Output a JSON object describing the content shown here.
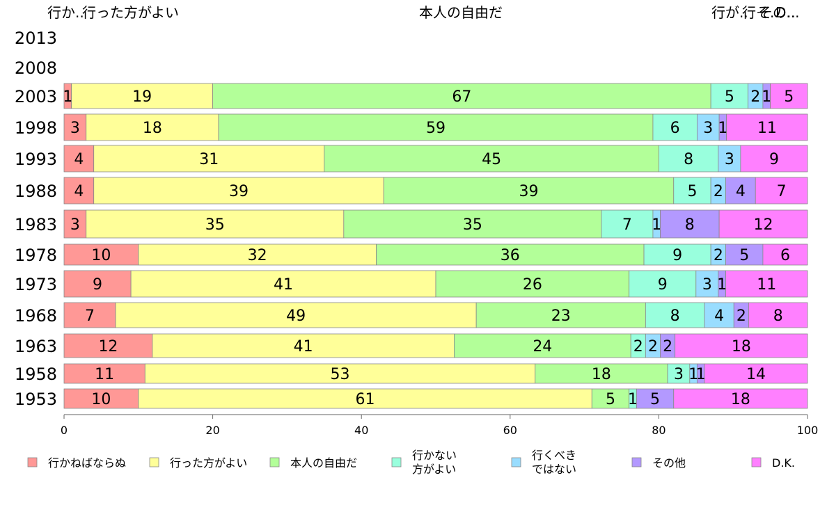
{
  "chart_data": {
    "type": "bar",
    "orientation": "horizontal",
    "stacked": true,
    "header_labels": [
      "行か..",
      "行った方がよい",
      "本人の自由だ",
      "行が..",
      "行そ..",
      "その..",
      "D..."
    ],
    "categories": [
      "2013",
      "2008",
      "2003",
      "1998",
      "1993",
      "1988",
      "1983",
      "1978",
      "1973",
      "1968",
      "1963",
      "1958",
      "1953"
    ],
    "series": [
      {
        "name": "行かねばならぬ",
        "color": "#ff9896",
        "values": [
          null,
          null,
          1,
          3,
          4,
          4,
          3,
          10,
          9,
          7,
          12,
          11,
          10
        ]
      },
      {
        "name": "行った方がよい",
        "color": "#ffff99",
        "values": [
          null,
          null,
          19,
          18,
          31,
          39,
          35,
          32,
          41,
          49,
          41,
          53,
          61
        ]
      },
      {
        "name": "本人の自由だ",
        "color": "#b3ff99",
        "values": [
          null,
          null,
          67,
          59,
          45,
          39,
          35,
          36,
          26,
          23,
          24,
          18,
          5
        ]
      },
      {
        "name": "行かない\n方がよい",
        "color": "#99ffdd",
        "values": [
          null,
          null,
          5,
          6,
          8,
          5,
          7,
          9,
          9,
          8,
          2,
          3,
          1
        ]
      },
      {
        "name": "行くべき\nではない",
        "color": "#99ddff",
        "values": [
          null,
          null,
          2,
          3,
          3,
          2,
          1,
          2,
          3,
          4,
          2,
          1,
          null
        ]
      },
      {
        "name": "その他",
        "color": "#b399ff",
        "values": [
          null,
          null,
          1,
          1,
          null,
          4,
          8,
          5,
          1,
          2,
          2,
          1,
          5
        ]
      },
      {
        "name": "D.K.",
        "color": "#ff80ff",
        "values": [
          null,
          null,
          5,
          11,
          9,
          7,
          12,
          6,
          11,
          8,
          18,
          14,
          18
        ]
      }
    ],
    "xlim": [
      0,
      100
    ],
    "xticks": [
      0,
      20,
      40,
      60,
      80,
      100
    ],
    "legend_position": "bottom",
    "grid": false
  }
}
